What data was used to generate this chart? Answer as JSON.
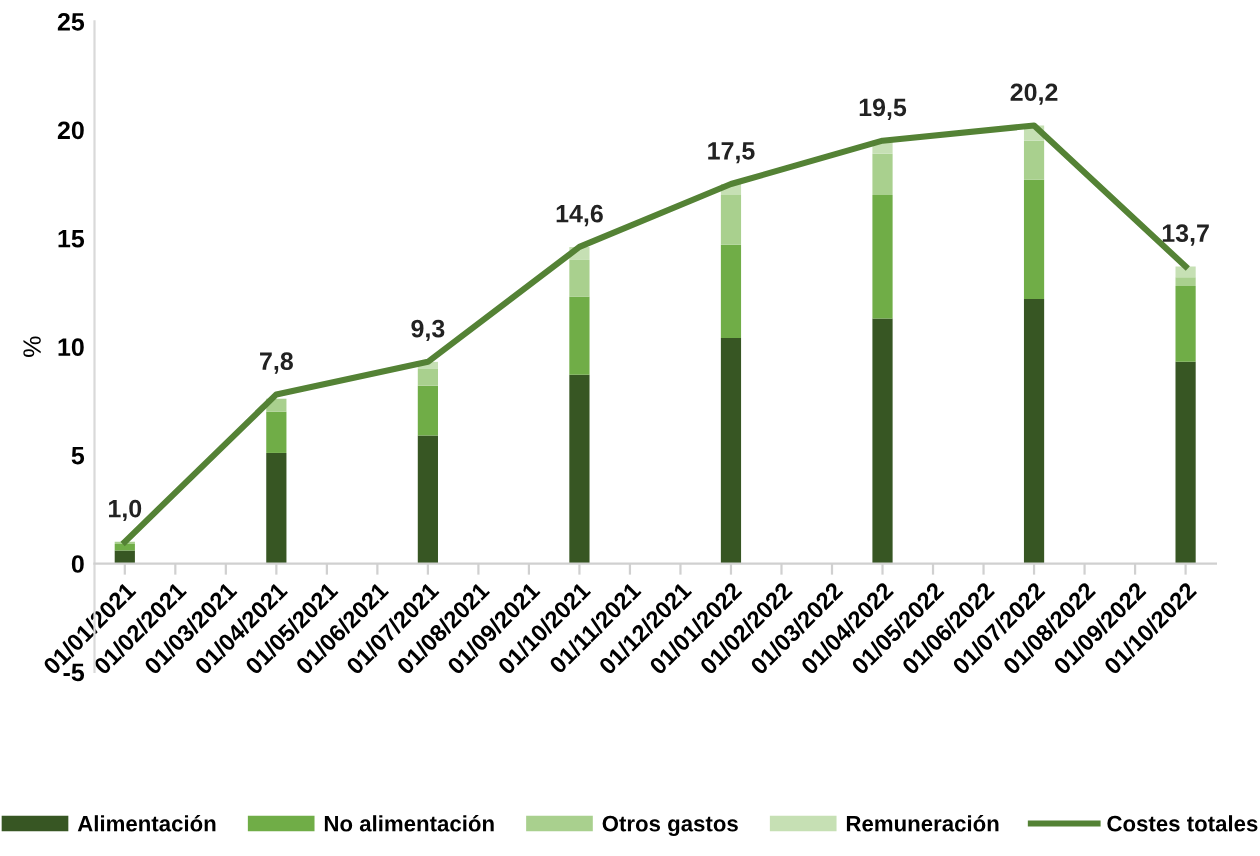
{
  "chart_data": {
    "type": "bar",
    "stacked": true,
    "ylabel": "%",
    "categories": [
      "01/01/2021",
      "01/02/2021",
      "01/03/2021",
      "01/04/2021",
      "01/05/2021",
      "01/06/2021",
      "01/07/2021",
      "01/08/2021",
      "01/09/2021",
      "01/10/2021",
      "01/11/2021",
      "01/12/2021",
      "01/01/2022",
      "01/02/2022",
      "01/03/2022",
      "01/04/2022",
      "01/05/2022",
      "01/06/2022",
      "01/07/2022",
      "01/08/2022",
      "01/09/2022",
      "01/10/2022"
    ],
    "series": [
      {
        "name": "Alimentación",
        "color": "#375623",
        "values": [
          0.6,
          null,
          null,
          5.1,
          null,
          null,
          5.9,
          null,
          null,
          8.7,
          null,
          null,
          10.4,
          null,
          null,
          11.3,
          null,
          null,
          12.2,
          null,
          null,
          9.3
        ]
      },
      {
        "name": "No alimentación",
        "color": "#70ad47",
        "values": [
          0.3,
          null,
          null,
          1.9,
          null,
          null,
          2.3,
          null,
          null,
          3.6,
          null,
          null,
          4.3,
          null,
          null,
          5.7,
          null,
          null,
          5.5,
          null,
          null,
          3.5
        ]
      },
      {
        "name": "Otros gastos",
        "color": "#a9d08e",
        "values": [
          0.1,
          null,
          null,
          0.6,
          null,
          null,
          0.8,
          null,
          null,
          1.7,
          null,
          null,
          2.3,
          null,
          null,
          1.9,
          null,
          null,
          1.8,
          null,
          null,
          0.4
        ]
      },
      {
        "name": "Remuneración",
        "color": "#c6e0b4",
        "values": [
          null,
          null,
          null,
          null,
          null,
          null,
          0.3,
          null,
          null,
          0.6,
          null,
          null,
          0.5,
          null,
          null,
          0.6,
          null,
          null,
          0.7,
          null,
          null,
          0.5
        ]
      },
      {
        "name": "Costes totales",
        "type": "line",
        "color": "#548235",
        "marker": "none",
        "line_style": "solid",
        "values": [
          1.0,
          null,
          null,
          7.8,
          null,
          null,
          9.3,
          null,
          null,
          14.6,
          null,
          null,
          17.5,
          null,
          null,
          19.5,
          null,
          null,
          20.2,
          null,
          null,
          13.7
        ],
        "value_labels": [
          "1,0",
          null,
          null,
          "7,8",
          null,
          null,
          "9,3",
          null,
          null,
          "14,6",
          null,
          null,
          "17,5",
          null,
          null,
          "19,5",
          null,
          null,
          "20,2",
          null,
          null,
          "13,7"
        ]
      }
    ],
    "ylim": [
      -5,
      25
    ],
    "yticks": [
      -5,
      0,
      5,
      10,
      15,
      20,
      25
    ],
    "legend": "bottom"
  }
}
